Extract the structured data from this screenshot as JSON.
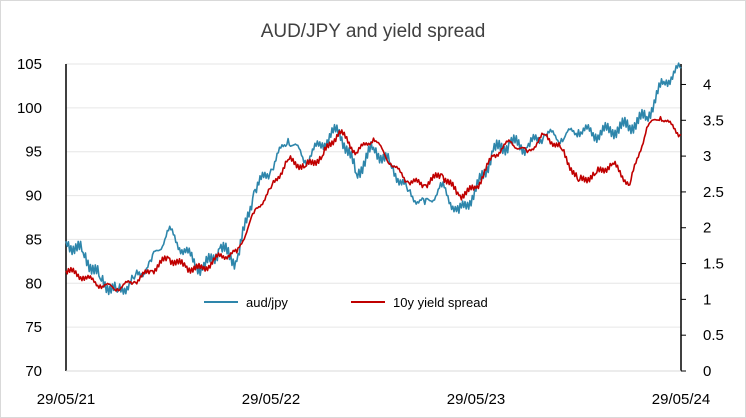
{
  "chart_data": {
    "type": "line",
    "title": "AUD/JPY and yield spread",
    "x_tick_labels": [
      "29/05/21",
      "29/05/22",
      "29/05/23",
      "29/05/24"
    ],
    "y_left": {
      "min": 70,
      "max": 105,
      "ticks": [
        "70",
        "75",
        "80",
        "85",
        "90",
        "95",
        "100",
        "105"
      ]
    },
    "y_right": {
      "min": 0,
      "max": 4.2857,
      "ticks": [
        "0",
        "0.5",
        "1",
        "1.5",
        "2",
        "2.5",
        "3",
        "3.5",
        "4"
      ]
    },
    "grid": "horizontal",
    "legend_position": "inside-lower-center",
    "series": [
      {
        "name": "aud/jpy",
        "axis": "left",
        "color": "#2e86ab",
        "x": [
          0,
          1,
          2,
          3,
          4,
          5,
          6,
          7,
          8,
          9,
          10,
          11,
          12,
          13,
          14,
          15,
          16,
          17,
          18,
          19,
          20,
          21,
          22,
          23,
          24,
          25,
          26,
          27,
          28,
          29,
          30,
          31,
          32,
          33,
          34,
          35,
          36
        ],
        "values": [
          84.8,
          83.5,
          80.5,
          79.0,
          80.5,
          82.5,
          86.0,
          83.5,
          81.5,
          84.0,
          82.5,
          90.5,
          93.0,
          96.5,
          94.0,
          96.0,
          97.5,
          92.5,
          95.5,
          93.5,
          90.5,
          89.0,
          91.0,
          88.0,
          90.5,
          95.0,
          96.0,
          95.5,
          97.0,
          96.5,
          97.5,
          97.0,
          97.5,
          98.0,
          99.0,
          103.0,
          104.5
        ]
      },
      {
        "name": "10y yield spread",
        "axis": "right",
        "color": "#c00000",
        "x": [
          0,
          1,
          2,
          3,
          4,
          5,
          6,
          7,
          8,
          9,
          10,
          11,
          12,
          13,
          14,
          15,
          16,
          17,
          18,
          19,
          20,
          21,
          22,
          23,
          24,
          25,
          26,
          27,
          28,
          29,
          30,
          31,
          32,
          33,
          34,
          34.8,
          36
        ],
        "values": [
          1.4,
          1.32,
          1.2,
          1.15,
          1.25,
          1.4,
          1.58,
          1.45,
          1.42,
          1.6,
          1.65,
          2.2,
          2.55,
          2.95,
          2.85,
          3.0,
          3.35,
          3.05,
          3.25,
          2.9,
          2.65,
          2.6,
          2.75,
          2.45,
          2.55,
          3.0,
          3.2,
          3.05,
          3.3,
          3.1,
          2.65,
          2.75,
          2.9,
          2.6,
          3.4,
          3.55,
          3.3
        ]
      }
    ]
  }
}
